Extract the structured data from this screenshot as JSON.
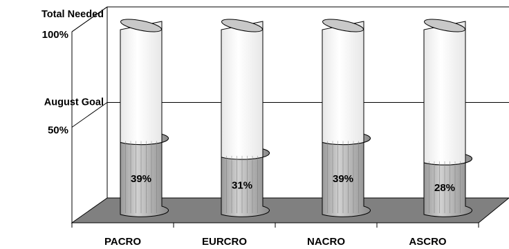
{
  "chart_data": {
    "type": "bar",
    "title": "",
    "xlabel": "",
    "ylabel": "",
    "categories": [
      "PACRO",
      "EURCRO",
      "NACRO",
      "ASCRO"
    ],
    "values": [
      39,
      31,
      39,
      28
    ],
    "value_labels": [
      "39%",
      "31%",
      "39%",
      "28%"
    ],
    "ylim": [
      0,
      100
    ],
    "reference_lines": [
      {
        "label": "August Goal",
        "tick": "50%",
        "value": 50
      },
      {
        "label": "Total Needed",
        "tick": "100%",
        "value": 100
      }
    ],
    "grid": true,
    "legend": "none",
    "style": "3d-cylinder",
    "colors": {
      "filled": "#c0c0c0",
      "remaining": "#ffffff",
      "floor": "#808080",
      "outline": "#000000"
    }
  }
}
